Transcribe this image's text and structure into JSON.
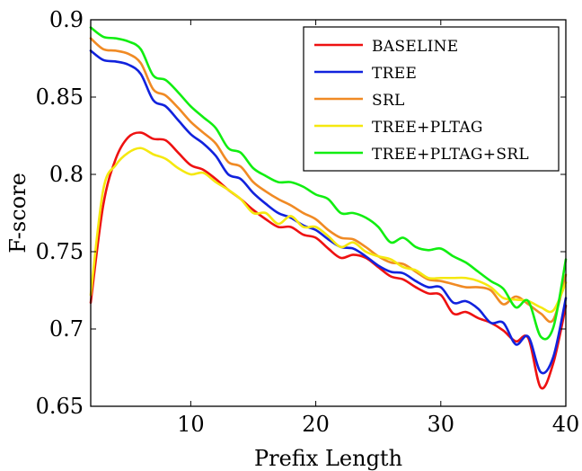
{
  "chart_data": {
    "type": "line",
    "title": "",
    "xlabel": "Prefix Length",
    "ylabel": "F-score",
    "xlim": [
      2,
      40
    ],
    "ylim": [
      0.65,
      0.9
    ],
    "xticks": [
      "10",
      "20",
      "30",
      "40"
    ],
    "yticks": [
      "0.9",
      "0.85",
      "0.8",
      "0.75",
      "0.7",
      "0.65"
    ],
    "grid": false,
    "legend_position": "top-right",
    "x": [
      2,
      3,
      4,
      5,
      6,
      7,
      8,
      9,
      10,
      11,
      12,
      13,
      14,
      15,
      16,
      17,
      18,
      19,
      20,
      21,
      22,
      23,
      24,
      25,
      26,
      27,
      28,
      29,
      30,
      31,
      32,
      33,
      34,
      35,
      36,
      37,
      38,
      39,
      40
    ],
    "series": [
      {
        "name": "Baseline",
        "legend_label": "BASELINE",
        "color": "#ee1111",
        "values": [
          0.717,
          0.78,
          0.81,
          0.824,
          0.827,
          0.823,
          0.822,
          0.814,
          0.806,
          0.803,
          0.797,
          0.79,
          0.784,
          0.777,
          0.771,
          0.766,
          0.766,
          0.761,
          0.759,
          0.752,
          0.746,
          0.748,
          0.746,
          0.74,
          0.734,
          0.732,
          0.727,
          0.723,
          0.722,
          0.71,
          0.711,
          0.707,
          0.704,
          0.699,
          0.692,
          0.694,
          0.662,
          0.678,
          0.715
        ]
      },
      {
        "name": "Tree",
        "legend_label": "TREE",
        "color": "#1122dd",
        "values": [
          0.88,
          0.874,
          0.873,
          0.871,
          0.865,
          0.848,
          0.844,
          0.835,
          0.826,
          0.82,
          0.812,
          0.8,
          0.797,
          0.788,
          0.781,
          0.775,
          0.772,
          0.767,
          0.764,
          0.758,
          0.753,
          0.752,
          0.747,
          0.741,
          0.737,
          0.736,
          0.731,
          0.727,
          0.727,
          0.717,
          0.718,
          0.713,
          0.704,
          0.704,
          0.69,
          0.695,
          0.672,
          0.682,
          0.72
        ]
      },
      {
        "name": "Srl",
        "legend_label": "SRL",
        "color": "#f08a24",
        "values": [
          0.888,
          0.881,
          0.88,
          0.878,
          0.872,
          0.855,
          0.851,
          0.843,
          0.834,
          0.827,
          0.82,
          0.808,
          0.805,
          0.795,
          0.789,
          0.784,
          0.78,
          0.775,
          0.771,
          0.764,
          0.759,
          0.758,
          0.753,
          0.747,
          0.743,
          0.742,
          0.737,
          0.732,
          0.731,
          0.729,
          0.727,
          0.727,
          0.725,
          0.716,
          0.721,
          0.716,
          0.71,
          0.706,
          0.735
        ]
      },
      {
        "name": "Tree+Pltag",
        "legend_label": "TREE+PLTAG",
        "color": "#f5e80f",
        "values": [
          0.722,
          0.79,
          0.806,
          0.814,
          0.817,
          0.813,
          0.81,
          0.804,
          0.8,
          0.801,
          0.795,
          0.79,
          0.784,
          0.775,
          0.775,
          0.768,
          0.773,
          0.766,
          0.766,
          0.76,
          0.753,
          0.756,
          0.75,
          0.747,
          0.745,
          0.74,
          0.738,
          0.733,
          0.733,
          0.733,
          0.733,
          0.731,
          0.727,
          0.72,
          0.719,
          0.718,
          0.714,
          0.712,
          0.73
        ]
      },
      {
        "name": "Tree+Pltag+Srl",
        "legend_label": "TREE+PLTAG+SRL",
        "color": "#11ee11",
        "values": [
          0.895,
          0.889,
          0.888,
          0.886,
          0.881,
          0.864,
          0.861,
          0.853,
          0.844,
          0.837,
          0.83,
          0.817,
          0.814,
          0.804,
          0.799,
          0.795,
          0.795,
          0.792,
          0.787,
          0.784,
          0.775,
          0.775,
          0.772,
          0.766,
          0.756,
          0.759,
          0.753,
          0.751,
          0.752,
          0.747,
          0.743,
          0.737,
          0.731,
          0.726,
          0.714,
          0.718,
          0.695,
          0.701,
          0.745
        ]
      }
    ]
  }
}
